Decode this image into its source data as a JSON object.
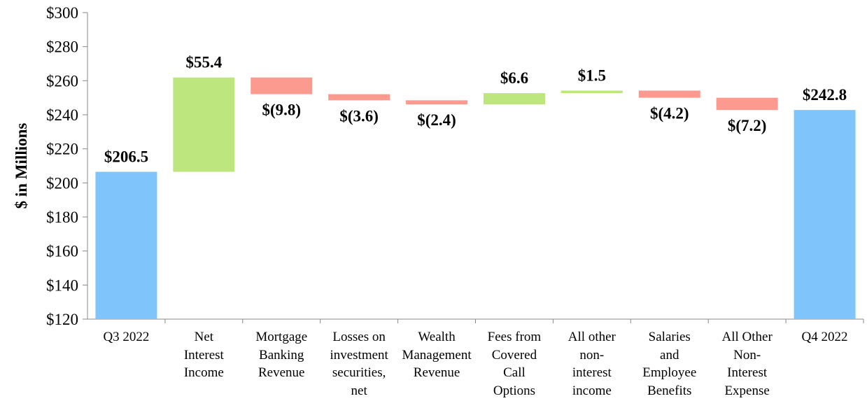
{
  "chart_data": {
    "type": "waterfall",
    "ylabel": "$ in Millions",
    "categories": [
      "Q3 2022",
      "Net\nInterest\nIncome",
      "Mortgage\nBanking\nRevenue",
      "Losses on\ninvestment\nsecurities,\nnet",
      "Wealth\nManagement\nRevenue",
      "Fees from\nCovered\nCall\nOptions",
      "All other\nnon-\ninterest\nincome",
      "Salaries\nand\nEmployee\nBenefits",
      "All Other\nNon-\nInterest\nExpense",
      "Q4 2022"
    ],
    "values": [
      206.5,
      55.4,
      -9.8,
      -3.6,
      -2.4,
      6.6,
      1.5,
      -4.2,
      -7.2,
      242.8
    ],
    "value_labels": [
      "$206.5",
      "$55.4",
      "$(9.8)",
      "$(3.6)",
      "$(2.4)",
      "$6.6",
      "$1.5",
      "$(4.2)",
      "$(7.2)",
      "$242.8"
    ],
    "totals": [
      true,
      false,
      false,
      false,
      false,
      false,
      false,
      false,
      false,
      true
    ],
    "colors": {
      "total": "#7fc4fb",
      "increase": "#bde67e",
      "decrease": "#fc9a8f"
    },
    "ylim": [
      120,
      300
    ],
    "yticks": [
      {
        "value": 120,
        "label": "$120"
      },
      {
        "value": 140,
        "label": "$140"
      },
      {
        "value": 160,
        "label": "$160"
      },
      {
        "value": 180,
        "label": "$180"
      },
      {
        "value": 200,
        "label": "$200"
      },
      {
        "value": 220,
        "label": "$220"
      },
      {
        "value": 240,
        "label": "$240"
      },
      {
        "value": 260,
        "label": "$260"
      },
      {
        "value": 280,
        "label": "$280"
      },
      {
        "value": 300,
        "label": "$300"
      }
    ]
  }
}
